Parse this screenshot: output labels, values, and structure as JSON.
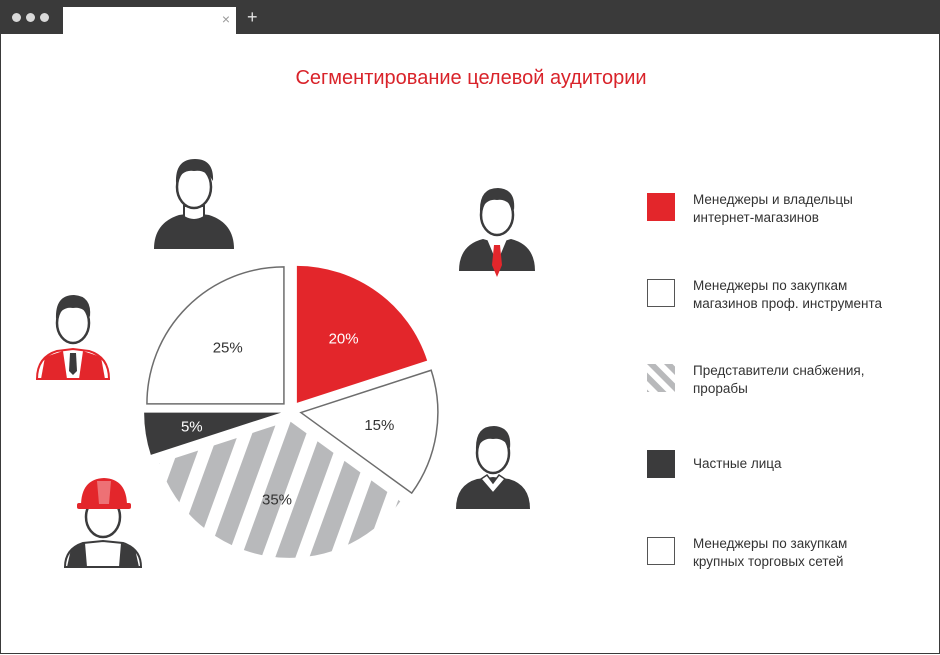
{
  "window": {
    "tab_close_glyph": "×",
    "new_tab_glyph": "+"
  },
  "page": {
    "title": "Сегментирование целевой аудитории"
  },
  "chart_data": {
    "type": "pie",
    "title": "Сегментирование целевой аудитории",
    "slices": [
      {
        "label": "Менеджеры и владельцы\nинтернет-магазинов",
        "value": 20,
        "value_label": "20%",
        "fill": "#e3262b",
        "pattern": "solid"
      },
      {
        "label": "Менеджеры по закупкам\nмагазинов проф. инструмента",
        "value": 15,
        "value_label": "15%",
        "fill": "#ffffff",
        "pattern": "outline"
      },
      {
        "label": "Представители снабжения,\nпрорабы",
        "value": 35,
        "value_label": "35%",
        "fill": "#b8b9bb",
        "pattern": "stripes"
      },
      {
        "label": "Частные лица",
        "value": 5,
        "value_label": "5%",
        "fill": "#3b3b3c",
        "pattern": "solid"
      },
      {
        "label": "Менеджеры по закупкам\nкрупных торговых сетей",
        "value": 25,
        "value_label": "25%",
        "fill": "#ffffff",
        "pattern": "outline"
      }
    ],
    "legend_position": "right",
    "exploded": true
  },
  "icons": [
    {
      "name": "person-black-shirt-icon"
    },
    {
      "name": "person-suit-red-tie-icon"
    },
    {
      "name": "person-red-vest-icon"
    },
    {
      "name": "person-sweater-collar-icon"
    },
    {
      "name": "worker-red-hard-hat-icon"
    }
  ],
  "colors": {
    "accent": "#d9232a",
    "red": "#e3262b",
    "dark": "#3b3b3c",
    "gray": "#b8b9bb"
  }
}
